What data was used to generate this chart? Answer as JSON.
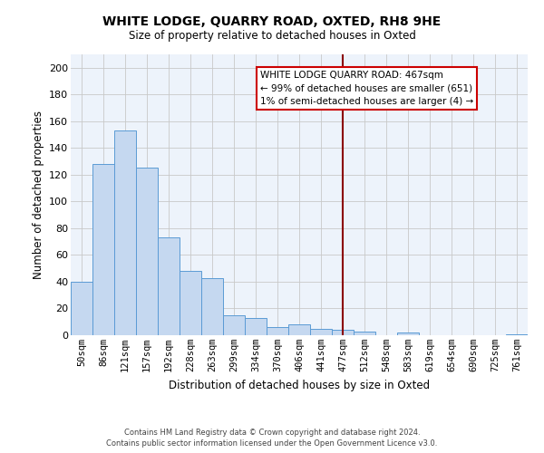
{
  "title": "WHITE LODGE, QUARRY ROAD, OXTED, RH8 9HE",
  "subtitle": "Size of property relative to detached houses in Oxted",
  "xlabel": "Distribution of detached houses by size in Oxted",
  "ylabel": "Number of detached properties",
  "bar_labels": [
    "50sqm",
    "86sqm",
    "121sqm",
    "157sqm",
    "192sqm",
    "228sqm",
    "263sqm",
    "299sqm",
    "334sqm",
    "370sqm",
    "406sqm",
    "441sqm",
    "477sqm",
    "512sqm",
    "548sqm",
    "583sqm",
    "619sqm",
    "654sqm",
    "690sqm",
    "725sqm",
    "761sqm"
  ],
  "bar_values": [
    40,
    128,
    153,
    125,
    73,
    48,
    43,
    15,
    13,
    6,
    8,
    5,
    4,
    3,
    0,
    2,
    0,
    0,
    0,
    0,
    1
  ],
  "bar_color": "#c5d8f0",
  "bar_edge_color": "#5b9bd5",
  "plot_bg_color": "#edf3fb",
  "ylim": [
    0,
    210
  ],
  "yticks": [
    0,
    20,
    40,
    60,
    80,
    100,
    120,
    140,
    160,
    180,
    200
  ],
  "grid_color": "#c8c8c8",
  "vline_idx": 12,
  "vline_color": "#8b0000",
  "annotation_title": "WHITE LODGE QUARRY ROAD: 467sqm",
  "annotation_line1": "← 99% of detached houses are smaller (651)",
  "annotation_line2": "1% of semi-detached houses are larger (4) →",
  "footer1": "Contains HM Land Registry data © Crown copyright and database right 2024.",
  "footer2": "Contains public sector information licensed under the Open Government Licence v3.0."
}
